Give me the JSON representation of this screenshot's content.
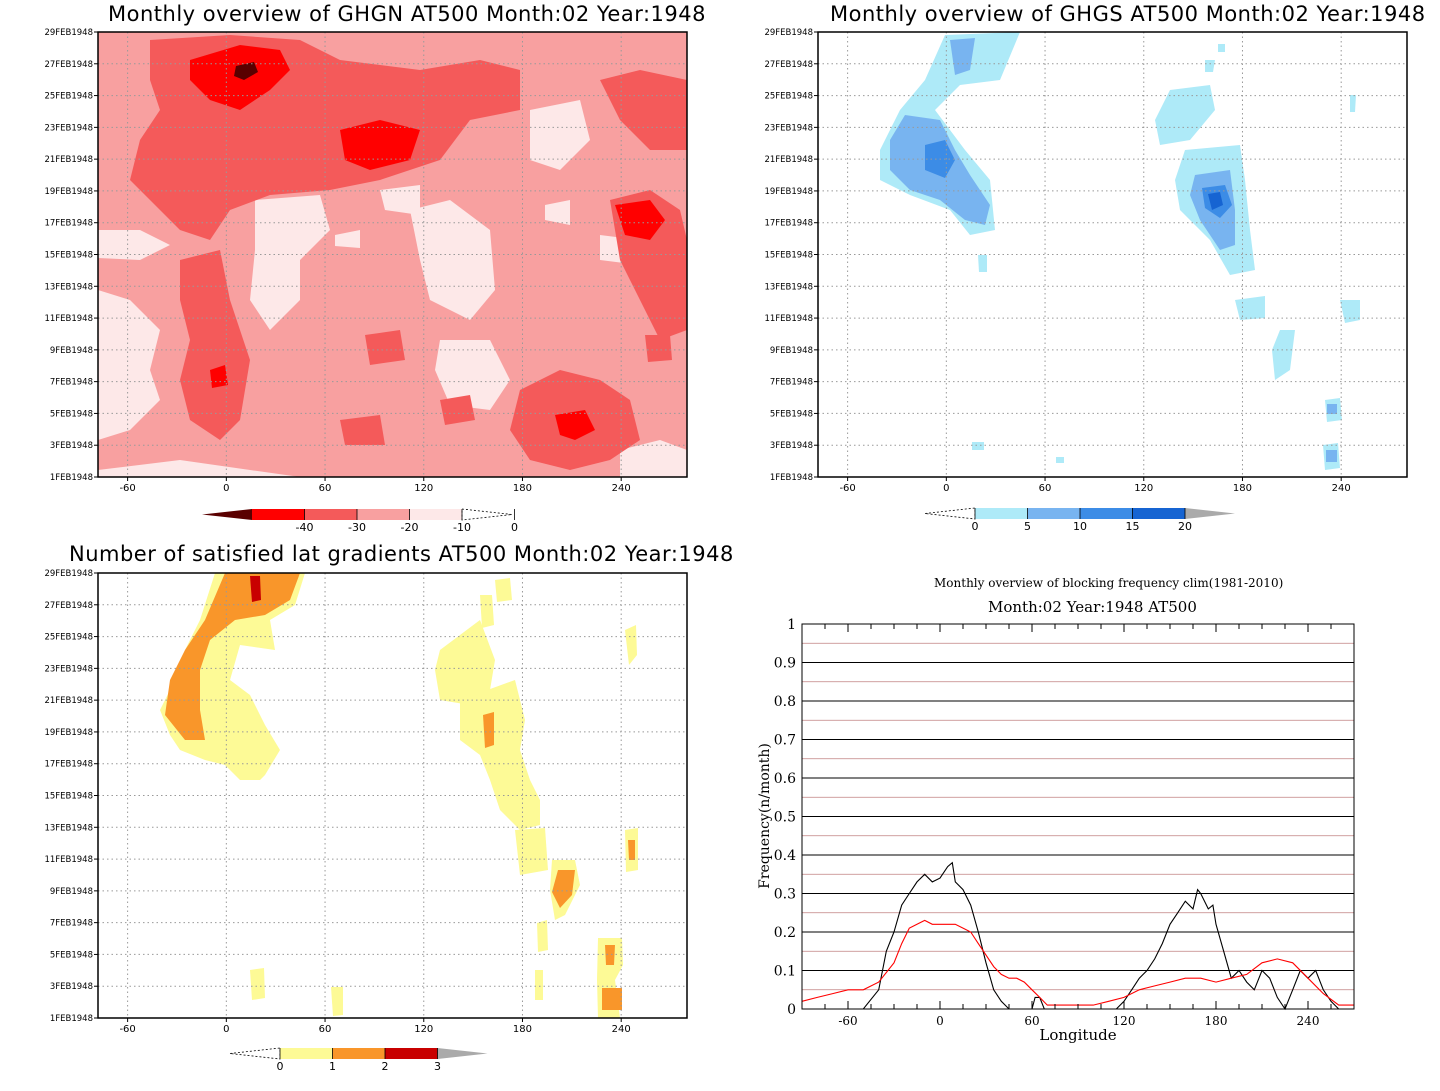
{
  "chart_data": [
    {
      "type": "heatmap",
      "title": "Monthly overview of GHGN AT500 Month:02 Year:1948",
      "x_ticks": [
        "-60",
        "0",
        "60",
        "120",
        "180",
        "240"
      ],
      "x_tick_values": [
        -60,
        0,
        60,
        120,
        180,
        240
      ],
      "xlim": [
        -78,
        280
      ],
      "y_ticks": [
        "1FEB1948",
        "3FEB1948",
        "5FEB1948",
        "7FEB1948",
        "9FEB1948",
        "11FEB1948",
        "13FEB1948",
        "15FEB1948",
        "17FEB1948",
        "19FEB1948",
        "21FEB1948",
        "23FEB1948",
        "25FEB1948",
        "27FEB1948",
        "29FEB1948"
      ],
      "grid": true,
      "colorbar": {
        "levels": [
          "-40",
          "-30",
          "-20",
          "-10",
          "0"
        ],
        "colors": [
          "#5a0000",
          "#ff0000",
          "#f45a5a",
          "#f8a0a0",
          "#fde8e8",
          "#ffffff"
        ],
        "extend": "both"
      },
      "fill_colors": {
        "lightest": "#fde8e8",
        "light": "#f8a0a0",
        "mid": "#f45a5a",
        "strong": "#ff0000",
        "darkest": "#5a0000"
      }
    },
    {
      "type": "heatmap",
      "title": "Monthly overview of GHGS AT500 Month:02 Year:1948",
      "x_ticks": [
        "-60",
        "0",
        "60",
        "120",
        "180",
        "240"
      ],
      "x_tick_values": [
        -60,
        0,
        60,
        120,
        180,
        240
      ],
      "xlim": [
        -78,
        280
      ],
      "y_ticks": [
        "1FEB1948",
        "3FEB1948",
        "5FEB1948",
        "7FEB1948",
        "9FEB1948",
        "11FEB1948",
        "13FEB1948",
        "15FEB1948",
        "17FEB1948",
        "19FEB1948",
        "21FEB1948",
        "23FEB1948",
        "25FEB1948",
        "27FEB1948",
        "29FEB1948"
      ],
      "grid": true,
      "colorbar": {
        "levels": [
          "0",
          "5",
          "10",
          "15",
          "20"
        ],
        "colors": [
          "#ffffff",
          "#aeeaf8",
          "#78b4f0",
          "#3c8ce6",
          "#1664d2",
          "#aaaaaa"
        ],
        "extend": "both"
      },
      "fill_colors": {
        "light": "#aeeaf8",
        "mid": "#78b4f0",
        "strong": "#3c8ce6",
        "darkest": "#1664d2"
      }
    },
    {
      "type": "heatmap",
      "title": "Number of satisfied lat gradients AT500 Month:02 Year:1948",
      "x_ticks": [
        "-60",
        "0",
        "60",
        "120",
        "180",
        "240"
      ],
      "x_tick_values": [
        -60,
        0,
        60,
        120,
        180,
        240
      ],
      "xlim": [
        -78,
        280
      ],
      "y_ticks": [
        "1FEB1948",
        "3FEB1948",
        "5FEB1948",
        "7FEB1948",
        "9FEB1948",
        "11FEB1948",
        "13FEB1948",
        "15FEB1948",
        "17FEB1948",
        "19FEB1948",
        "21FEB1948",
        "23FEB1948",
        "25FEB1948",
        "27FEB1948",
        "29FEB1948"
      ],
      "grid": true,
      "colorbar": {
        "levels": [
          "0",
          "1",
          "2",
          "3"
        ],
        "colors": [
          "#ffffff",
          "#fdfa96",
          "#f9962a",
          "#c80000",
          "#aaaaaa"
        ],
        "extend": "both"
      },
      "fill_colors": {
        "light": "#fdfa96",
        "mid": "#f9962a",
        "strong": "#c80000"
      }
    },
    {
      "type": "line",
      "title": "Monthly overview of blocking frequency clim(1981-2010)",
      "subtitle": "Month:02 Year:1948  AT500",
      "xlabel": "Longitude",
      "ylabel": "Frequency(n/month)",
      "xlim": [
        -90,
        270
      ],
      "ylim": [
        0,
        1
      ],
      "x_ticks": [
        "-60",
        "0",
        "60",
        "120",
        "180",
        "240"
      ],
      "x_tick_values": [
        -60,
        0,
        60,
        120,
        180,
        240
      ],
      "y_ticks": [
        "0",
        "0.1",
        "0.2",
        "0.3",
        "0.4",
        "0.5",
        "0.6",
        "0.7",
        "0.8",
        "0.9",
        "1"
      ],
      "y_tick_values": [
        0,
        0.1,
        0.2,
        0.3,
        0.4,
        0.5,
        0.6,
        0.7,
        0.8,
        0.9,
        1
      ],
      "series": [
        {
          "color": "#000000",
          "x": [
            -90,
            -80,
            -70,
            -60,
            -50,
            -40,
            -35,
            -30,
            -25,
            -20,
            -15,
            -10,
            -5,
            0,
            5,
            8,
            10,
            15,
            20,
            25,
            30,
            35,
            40,
            45,
            50,
            55,
            60,
            62,
            65,
            68,
            70,
            80,
            90,
            100,
            110,
            115,
            120,
            125,
            130,
            135,
            140,
            145,
            150,
            155,
            160,
            165,
            168,
            170,
            175,
            178,
            180,
            185,
            190,
            195,
            200,
            205,
            210,
            215,
            220,
            225,
            230,
            235,
            240,
            245,
            250,
            255,
            260,
            265,
            270
          ],
          "y": [
            0,
            0,
            0,
            0,
            0,
            0.05,
            0.15,
            0.2,
            0.27,
            0.3,
            0.33,
            0.35,
            0.33,
            0.34,
            0.37,
            0.38,
            0.33,
            0.31,
            0.27,
            0.2,
            0.12,
            0.05,
            0.02,
            0,
            0,
            0,
            0,
            0.03,
            0.03,
            0,
            0,
            0,
            0,
            0,
            0,
            0,
            0.02,
            0.05,
            0.08,
            0.1,
            0.13,
            0.17,
            0.22,
            0.25,
            0.28,
            0.26,
            0.31,
            0.3,
            0.26,
            0.27,
            0.22,
            0.15,
            0.08,
            0.1,
            0.07,
            0.05,
            0.1,
            0.08,
            0.03,
            0,
            0.05,
            0.1,
            0.08,
            0.1,
            0.05,
            0.02,
            0,
            0,
            0
          ]
        },
        {
          "color": "#ff0000",
          "x": [
            -90,
            -80,
            -70,
            -60,
            -50,
            -40,
            -30,
            -25,
            -20,
            -15,
            -10,
            -5,
            0,
            5,
            10,
            15,
            20,
            25,
            30,
            35,
            40,
            45,
            50,
            55,
            60,
            65,
            70,
            75,
            80,
            90,
            100,
            110,
            120,
            130,
            140,
            150,
            160,
            170,
            180,
            190,
            200,
            210,
            220,
            230,
            240,
            250,
            260,
            270
          ],
          "y": [
            0.02,
            0.03,
            0.04,
            0.05,
            0.05,
            0.07,
            0.12,
            0.17,
            0.21,
            0.22,
            0.23,
            0.22,
            0.22,
            0.22,
            0.22,
            0.21,
            0.2,
            0.17,
            0.14,
            0.11,
            0.09,
            0.08,
            0.08,
            0.07,
            0.05,
            0.03,
            0.01,
            0.01,
            0.01,
            0.01,
            0.01,
            0.02,
            0.03,
            0.05,
            0.06,
            0.07,
            0.08,
            0.08,
            0.07,
            0.08,
            0.09,
            0.12,
            0.13,
            0.12,
            0.08,
            0.04,
            0.01,
            0.01
          ]
        }
      ],
      "grid": true,
      "gridline_colors": {
        "major": "#000000",
        "minor": "#c08080"
      }
    }
  ]
}
